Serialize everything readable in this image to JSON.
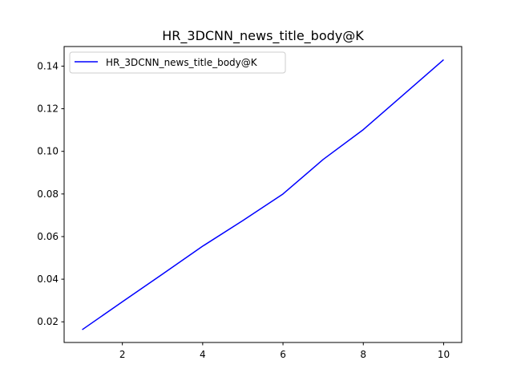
{
  "chart_data": {
    "type": "line",
    "title": "HR_3DCNN_news_title_body@K",
    "xlabel": "",
    "ylabel": "",
    "xlim": [
      0.55,
      10.45
    ],
    "ylim": [
      0.0103,
      0.1492
    ],
    "xticks": [
      2,
      4,
      6,
      8,
      10
    ],
    "xtick_labels": [
      "2",
      "4",
      "6",
      "8",
      "10"
    ],
    "yticks": [
      0.02,
      0.04,
      0.06,
      0.08,
      0.1,
      0.12,
      0.14
    ],
    "ytick_labels": [
      "0.02",
      "0.04",
      "0.06",
      "0.08",
      "0.10",
      "0.12",
      "0.14"
    ],
    "grid": false,
    "legend_position": "top-left",
    "series": [
      {
        "name": "HR_3DCNN_news_title_body@K",
        "color": "#0000ff",
        "x": [
          1,
          2,
          3,
          4,
          5,
          6,
          7,
          8,
          9,
          10
        ],
        "values": [
          0.0163,
          0.0294,
          0.0424,
          0.0555,
          0.0675,
          0.08,
          0.0962,
          0.1102,
          0.1266,
          0.143
        ]
      }
    ]
  }
}
